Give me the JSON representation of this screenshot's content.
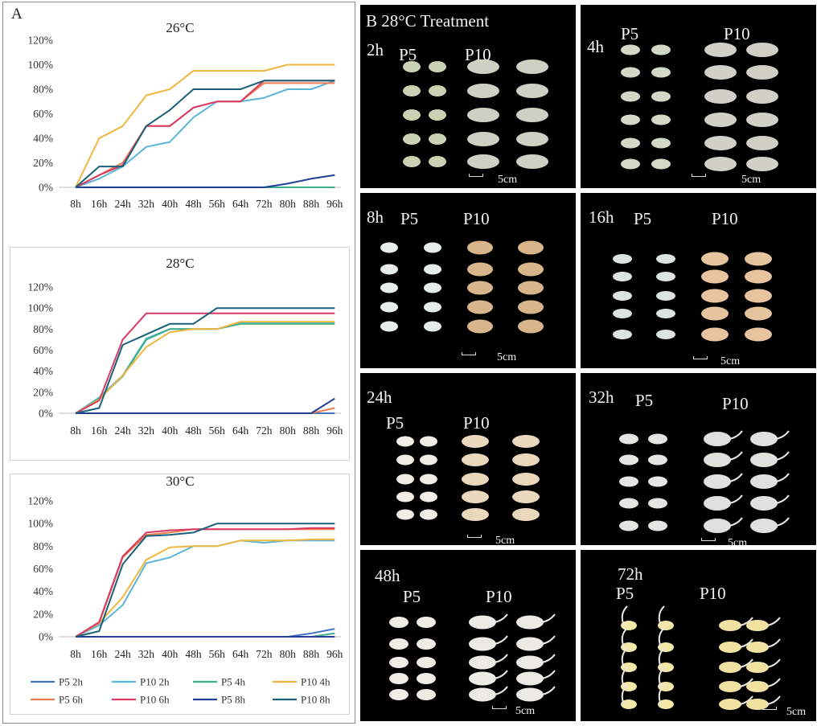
{
  "figure": {
    "panel_a_label": "A",
    "panel_b_title": "B 28°C Treatment"
  },
  "colors": {
    "P5 2h": "#4472c4",
    "P10 2h": "#5bb5d8",
    "P5 4h": "#3cae8a",
    "P10 4h": "#f0b63e",
    "P5 6h": "#ec7c52",
    "P10 6h": "#d93a64",
    "P5 8h": "#1f3f96",
    "P10 8h": "#19607a"
  },
  "chart_data": [
    {
      "type": "line",
      "title": "26°C",
      "categories": [
        "8h",
        "16h",
        "24h",
        "32h",
        "40h",
        "48h",
        "56h",
        "64h",
        "72h",
        "80h",
        "88h",
        "96h"
      ],
      "y_ticks": [
        "0%",
        "20%",
        "40%",
        "60%",
        "80%",
        "100%",
        "120%"
      ],
      "ylim": [
        0,
        120
      ],
      "legend": "none",
      "series": [
        {
          "name": "P5 2h",
          "values": [
            0,
            0,
            0,
            0,
            0,
            0,
            0,
            0,
            0,
            0,
            0,
            0
          ]
        },
        {
          "name": "P10 2h",
          "values": [
            0,
            7,
            17,
            33,
            37,
            57,
            70,
            70,
            73,
            80,
            80,
            87
          ]
        },
        {
          "name": "P5 4h",
          "values": [
            0,
            0,
            0,
            0,
            0,
            0,
            0,
            0,
            0,
            0,
            0,
            0
          ]
        },
        {
          "name": "P10 4h",
          "values": [
            0,
            40,
            50,
            75,
            80,
            95,
            95,
            95,
            95,
            100,
            100,
            100
          ]
        },
        {
          "name": "P5 6h",
          "values": [
            0,
            10,
            20,
            50,
            50,
            65,
            70,
            70,
            85,
            85,
            85,
            85
          ]
        },
        {
          "name": "P10 6h",
          "values": [
            0,
            10,
            18,
            50,
            50,
            65,
            70,
            70,
            87,
            87,
            87,
            87
          ]
        },
        {
          "name": "P5 8h",
          "values": [
            0,
            0,
            0,
            0,
            0,
            0,
            0,
            0,
            0,
            3,
            7,
            10
          ]
        },
        {
          "name": "P10 8h",
          "values": [
            0,
            17,
            17,
            50,
            63,
            80,
            80,
            80,
            87,
            87,
            87,
            87
          ]
        }
      ]
    },
    {
      "type": "line",
      "title": "28°C",
      "categories": [
        "8h",
        "16h",
        "24h",
        "32h",
        "40h",
        "48h",
        "56h",
        "64h",
        "72h",
        "80h",
        "88h",
        "96h"
      ],
      "y_ticks": [
        "0%",
        "20%",
        "40%",
        "60%",
        "80%",
        "100%",
        "120%"
      ],
      "ylim": [
        0,
        120
      ],
      "legend": "none",
      "series": [
        {
          "name": "P5 2h",
          "values": [
            0,
            0,
            0,
            0,
            0,
            0,
            0,
            0,
            0,
            0,
            0,
            0
          ]
        },
        {
          "name": "P10 2h",
          "values": [
            0,
            15,
            36,
            71,
            80,
            80,
            80,
            86,
            86,
            86,
            86,
            86
          ]
        },
        {
          "name": "P5 4h",
          "values": [
            0,
            14,
            35,
            70,
            80,
            80,
            80,
            85,
            85,
            85,
            85,
            85
          ]
        },
        {
          "name": "P10 4h",
          "values": [
            0,
            13,
            36,
            63,
            77,
            80,
            80,
            87,
            87,
            87,
            87,
            87
          ]
        },
        {
          "name": "P5 6h",
          "values": [
            0,
            0,
            0,
            0,
            0,
            0,
            0,
            0,
            0,
            0,
            0,
            5
          ]
        },
        {
          "name": "P10 6h",
          "values": [
            0,
            12,
            70,
            95,
            95,
            95,
            95,
            95,
            95,
            95,
            95,
            95
          ]
        },
        {
          "name": "P5 8h",
          "values": [
            0,
            0,
            0,
            0,
            0,
            0,
            0,
            0,
            0,
            0,
            0,
            14
          ]
        },
        {
          "name": "P10 8h",
          "values": [
            0,
            5,
            65,
            75,
            85,
            85,
            100,
            100,
            100,
            100,
            100,
            100
          ]
        }
      ]
    },
    {
      "type": "line",
      "title": "30°C",
      "categories": [
        "8h",
        "16h",
        "24h",
        "32h",
        "40h",
        "48h",
        "56h",
        "64h",
        "72h",
        "80h",
        "88h",
        "96h"
      ],
      "y_ticks": [
        "0%",
        "20%",
        "40%",
        "60%",
        "80%",
        "100%",
        "120%"
      ],
      "ylim": [
        0,
        120
      ],
      "legend": "bottom",
      "series": [
        {
          "name": "P5 2h",
          "values": [
            0,
            0,
            0,
            0,
            0,
            0,
            0,
            0,
            0,
            0,
            3,
            7
          ]
        },
        {
          "name": "P10 2h",
          "values": [
            0,
            10,
            28,
            65,
            70,
            80,
            80,
            85,
            83,
            85,
            85,
            85
          ]
        },
        {
          "name": "P5 4h",
          "values": [
            0,
            0,
            0,
            0,
            0,
            0,
            0,
            0,
            0,
            0,
            0,
            3
          ]
        },
        {
          "name": "P10 4h",
          "values": [
            0,
            12,
            35,
            68,
            79,
            80,
            80,
            85,
            85,
            85,
            86,
            86
          ]
        },
        {
          "name": "P5 6h",
          "values": [
            0,
            12,
            70,
            90,
            92,
            95,
            95,
            95,
            95,
            95,
            95,
            95
          ]
        },
        {
          "name": "P10 6h",
          "values": [
            0,
            13,
            71,
            92,
            94,
            95,
            95,
            95,
            95,
            95,
            96,
            96
          ]
        },
        {
          "name": "P5 8h",
          "values": [
            0,
            0,
            0,
            0,
            0,
            0,
            0,
            0,
            0,
            0,
            0,
            0
          ]
        },
        {
          "name": "P10 8h",
          "values": [
            0,
            5,
            64,
            89,
            90,
            92,
            100,
            100,
            100,
            100,
            100,
            100
          ]
        }
      ]
    }
  ],
  "photos": [
    {
      "time": "2h",
      "p5": "P5",
      "p10": "P10",
      "scale": "5cm"
    },
    {
      "time": "4h",
      "p5": "P5",
      "p10": "P10",
      "scale": "5cm"
    },
    {
      "time": "8h",
      "p5": "P5",
      "p10": "P10",
      "scale": "5cm"
    },
    {
      "time": "16h",
      "p5": "P5",
      "p10": "P10",
      "scale": "5cm"
    },
    {
      "time": "24h",
      "p5": "P5",
      "p10": "P10",
      "scale": "5cm"
    },
    {
      "time": "32h",
      "p5": "P5",
      "p10": "P10",
      "scale": "5cm"
    },
    {
      "time": "48h",
      "p5": "P5",
      "p10": "P10",
      "scale": "5cm"
    },
    {
      "time": "72h",
      "p5": "P5",
      "p10": "P10",
      "scale": "5cm"
    }
  ]
}
